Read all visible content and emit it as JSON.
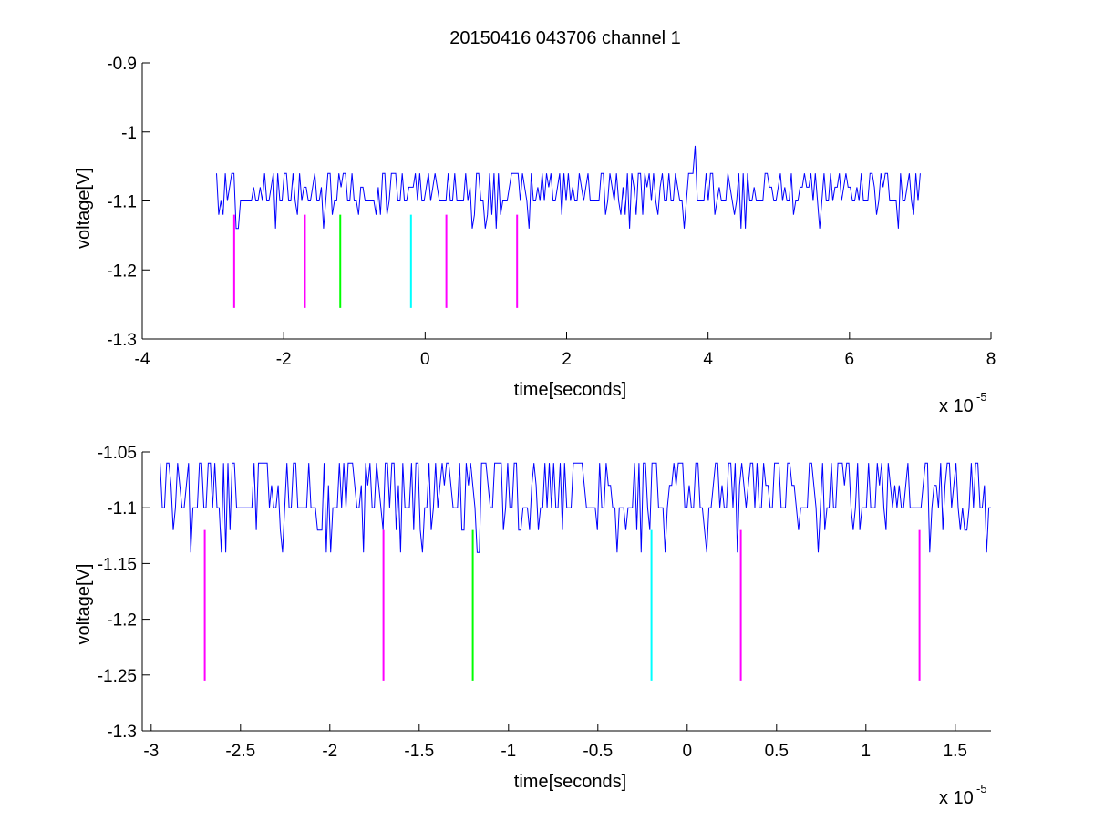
{
  "figure": {
    "title": "20150416 043706 channel 1"
  },
  "chart_data": [
    {
      "type": "line",
      "title": "20150416 043706 channel 1",
      "xlabel": "time[seconds]",
      "ylabel": "voltage[V]",
      "x_exponent_label": "x 10",
      "x_exponent_power": "-5",
      "xlim": [
        -4,
        8
      ],
      "ylim": [
        -1.3,
        -0.9
      ],
      "xticks": [
        -4,
        -2,
        0,
        2,
        4,
        6,
        8
      ],
      "xtick_labels": [
        "-4",
        "-2",
        "0",
        "2",
        "4",
        "6",
        "8"
      ],
      "yticks": [
        -1.3,
        -1.2,
        -1.1,
        -1,
        -0.9
      ],
      "ytick_labels": [
        "-1.3",
        "-1.2",
        "-1.1",
        "-1",
        "-0.9"
      ],
      "grid": false,
      "series": [
        {
          "type": "line",
          "color": "#0000ff",
          "x_range": [
            -2.95,
            7.0
          ],
          "base": -1.1,
          "levels": [
            -1.14,
            -1.12,
            -1.1,
            -1.08,
            -1.06
          ],
          "spike": {
            "x": 3.82,
            "y": -1.02
          }
        }
      ],
      "markers": [
        {
          "x": -2.7,
          "y_top": -1.12,
          "y_bottom": -1.255,
          "color": "#ff00ff"
        },
        {
          "x": -1.7,
          "y_top": -1.12,
          "y_bottom": -1.255,
          "color": "#ff00ff"
        },
        {
          "x": -1.2,
          "y_top": -1.12,
          "y_bottom": -1.255,
          "color": "#00ff00"
        },
        {
          "x": -0.2,
          "y_top": -1.12,
          "y_bottom": -1.255,
          "color": "#00ffff"
        },
        {
          "x": 0.3,
          "y_top": -1.12,
          "y_bottom": -1.255,
          "color": "#ff00ff"
        },
        {
          "x": 1.3,
          "y_top": -1.12,
          "y_bottom": -1.255,
          "color": "#ff00ff"
        }
      ]
    },
    {
      "type": "line",
      "xlabel": "time[seconds]",
      "ylabel": "voltage[V]",
      "x_exponent_label": "x 10",
      "x_exponent_power": "-5",
      "xlim": [
        -3.05,
        1.7
      ],
      "ylim": [
        -1.3,
        -1.05
      ],
      "xticks": [
        -3,
        -2.5,
        -2,
        -1.5,
        -1,
        -0.5,
        0,
        0.5,
        1,
        1.5
      ],
      "xtick_labels": [
        "-3",
        "-2.5",
        "-2",
        "-1.5",
        "-1",
        "-0.5",
        "0",
        "0.5",
        "1",
        "1.5"
      ],
      "yticks": [
        -1.3,
        -1.25,
        -1.2,
        -1.15,
        -1.1,
        -1.05
      ],
      "ytick_labels": [
        "-1.3",
        "-1.25",
        "-1.2",
        "-1.15",
        "-1.1",
        "-1.05"
      ],
      "grid": false,
      "series": [
        {
          "type": "line",
          "color": "#0000ff",
          "x_range": [
            -2.95,
            1.7
          ],
          "base": -1.1,
          "levels": [
            -1.14,
            -1.12,
            -1.1,
            -1.08,
            -1.06
          ]
        }
      ],
      "markers": [
        {
          "x": -2.7,
          "y_top": -1.12,
          "y_bottom": -1.255,
          "color": "#ff00ff"
        },
        {
          "x": -1.7,
          "y_top": -1.12,
          "y_bottom": -1.255,
          "color": "#ff00ff"
        },
        {
          "x": -1.2,
          "y_top": -1.12,
          "y_bottom": -1.255,
          "color": "#00ff00"
        },
        {
          "x": -0.2,
          "y_top": -1.12,
          "y_bottom": -1.255,
          "color": "#00ffff"
        },
        {
          "x": 0.3,
          "y_top": -1.12,
          "y_bottom": -1.255,
          "color": "#ff00ff"
        },
        {
          "x": 1.3,
          "y_top": -1.12,
          "y_bottom": -1.255,
          "color": "#ff00ff"
        }
      ]
    }
  ]
}
